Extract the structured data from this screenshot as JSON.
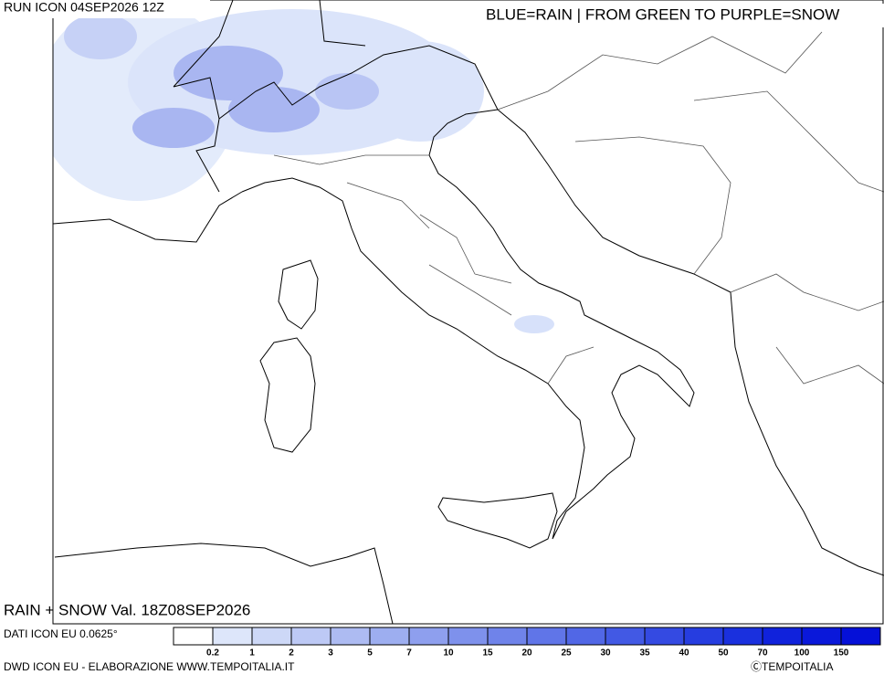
{
  "run_label": "RUN ICON 04SEP2026 12Z",
  "header": "BLUE=RAIN | FROM GREEN TO PURPLE=SNOW",
  "map_title": "RAIN + SNOW Val. 18Z08SEP2026",
  "data_source": "DATI ICON EU 0.0625°",
  "footer_left": "DWD ICON EU - ELABORAZIONE WWW.TEMPOITALIA.IT",
  "footer_right": "ⒸTEMPOITALIA",
  "colorbar": {
    "levels": [
      0.2,
      1,
      2,
      3,
      5,
      7,
      10,
      15,
      20,
      25,
      30,
      35,
      40,
      50,
      70,
      100,
      150
    ],
    "colors": [
      "#ffffff",
      "#dde6fa",
      "#cdd8f7",
      "#bdc9f5",
      "#adbbf2",
      "#9daef0",
      "#8e9fee",
      "#7e91ec",
      "#6f83ea",
      "#6075e8",
      "#5167e6",
      "#4259e4",
      "#344ae2",
      "#263de0",
      "#1a30de",
      "#1022dc",
      "#0a18da",
      "#0510d8"
    ]
  }
}
